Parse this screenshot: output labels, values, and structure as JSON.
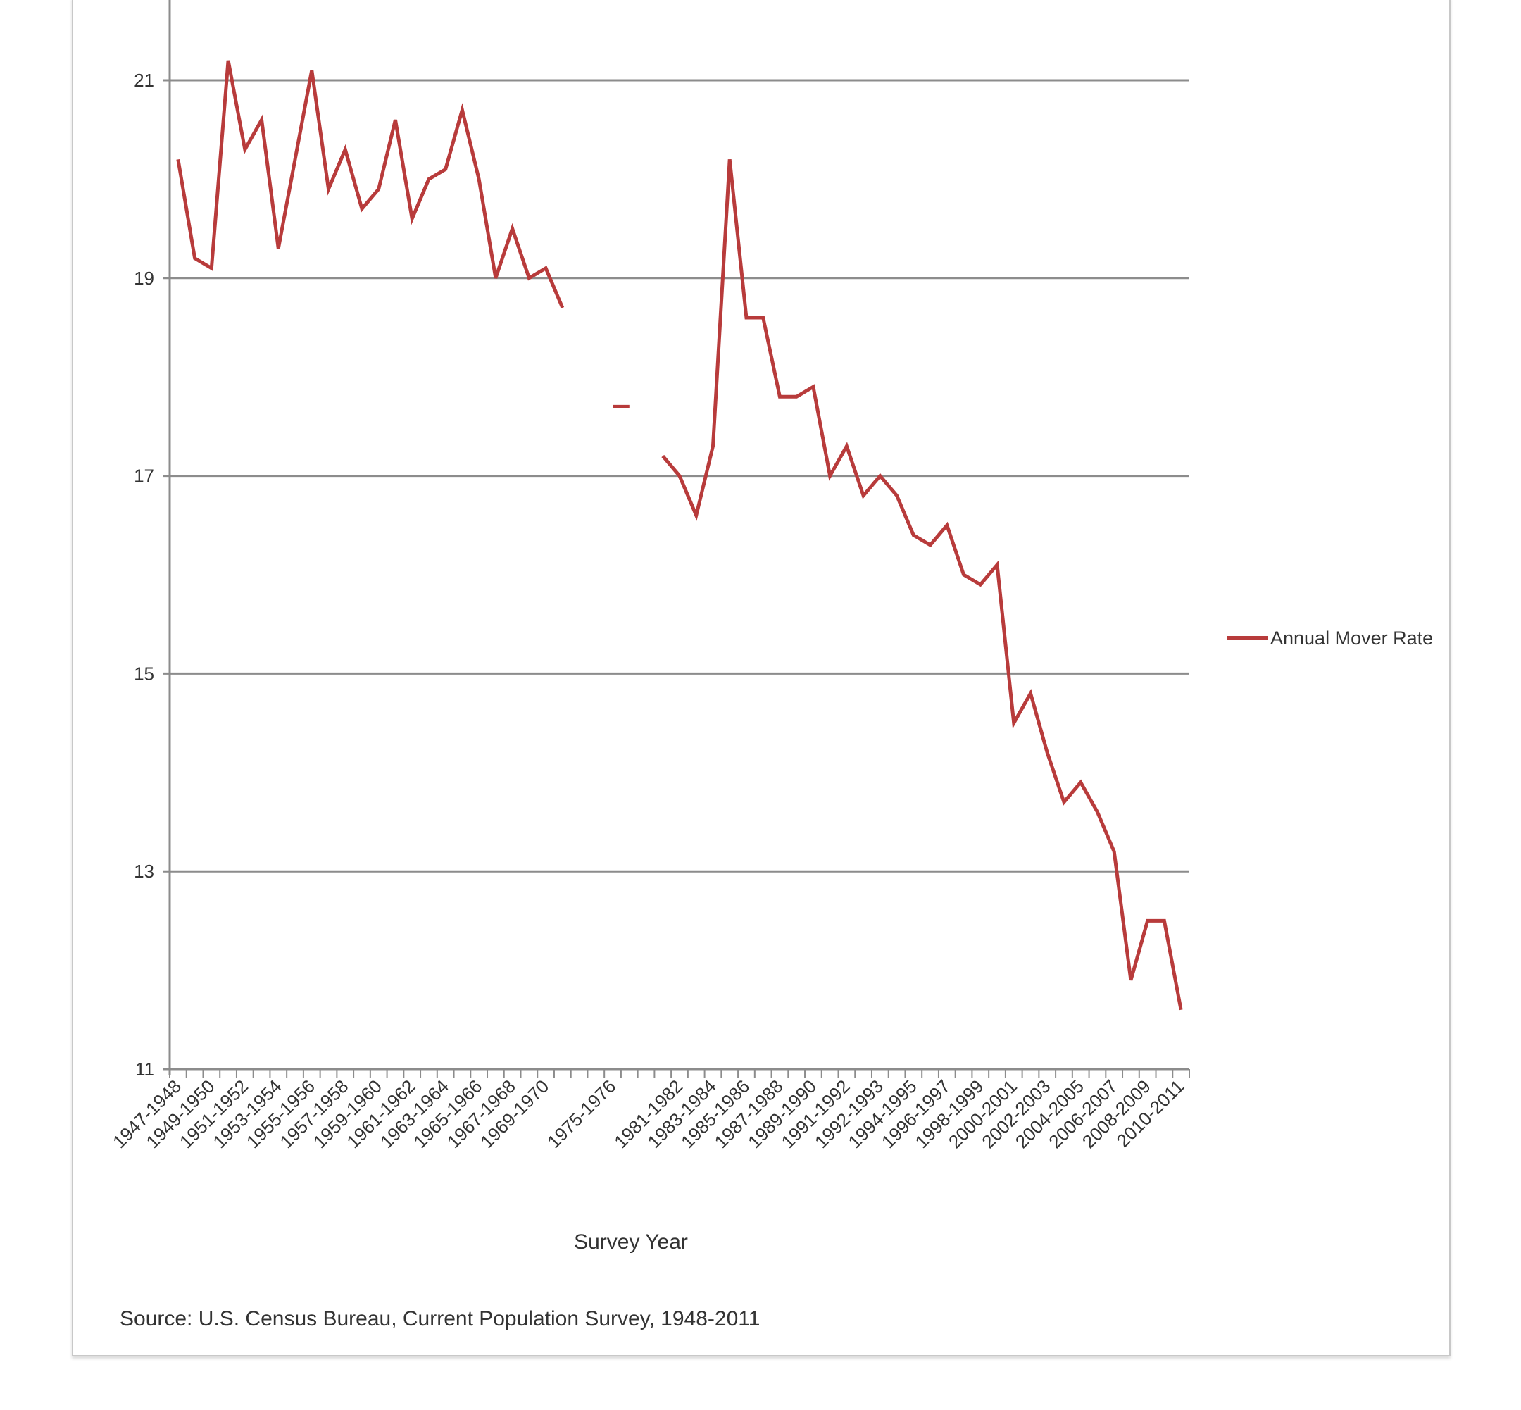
{
  "chart_data": {
    "type": "line",
    "title": "",
    "xlabel": "Survey Year",
    "ylabel": "",
    "ylim": [
      11,
      21
    ],
    "yticks": [
      11,
      13,
      15,
      17,
      19,
      21
    ],
    "grid": true,
    "legend_position": "right",
    "categories": [
      "1947-1948",
      "",
      "1949-1950",
      "",
      "1951-1952",
      "",
      "1953-1954",
      "",
      "1955-1956",
      "",
      "1957-1958",
      "",
      "1959-1960",
      "",
      "1961-1962",
      "",
      "1963-1964",
      "",
      "1965-1966",
      "",
      "1967-1968",
      "",
      "1969-1970",
      "",
      "",
      "",
      "1975-1976",
      "",
      "",
      "",
      "1981-1982",
      "",
      "1983-1984",
      "",
      "1985-1986",
      "",
      "1987-1988",
      "",
      "1989-1990",
      "",
      "1991-1992",
      "",
      "1992-1993",
      "",
      "1994-1995",
      "",
      "1996-1997",
      "",
      "1998-1999",
      "",
      "2000-2001",
      "",
      "2002-2003",
      "",
      "2004-2005",
      "",
      "2006-2007",
      "",
      "2008-2009",
      "",
      "2010-2011"
    ],
    "series": [
      {
        "name": "Annual Mover Rate",
        "color": "#b83b3b",
        "values": [
          20.2,
          19.2,
          19.1,
          21.2,
          20.3,
          20.6,
          19.3,
          20.2,
          21.1,
          19.9,
          20.3,
          19.7,
          19.9,
          20.6,
          19.6,
          20.0,
          20.1,
          20.7,
          20.0,
          19.0,
          19.5,
          19.0,
          19.1,
          18.7,
          null,
          null,
          17.7,
          17.7,
          null,
          17.2,
          17.0,
          16.6,
          17.3,
          20.2,
          18.6,
          18.6,
          17.8,
          17.8,
          17.9,
          17.0,
          17.3,
          16.8,
          17.0,
          16.8,
          16.4,
          16.3,
          16.5,
          16.0,
          15.9,
          16.1,
          14.5,
          14.8,
          14.2,
          13.7,
          13.9,
          13.6,
          13.2,
          11.9,
          12.5,
          12.5,
          11.6
        ]
      }
    ],
    "source_note": "Source: U.S. Census Bureau, Current Population Survey, 1948-2011"
  },
  "colors": {
    "line": "#b83b3b",
    "grid": "#8c8c8c",
    "axis": "#8c8c8c",
    "text": "#333333"
  }
}
